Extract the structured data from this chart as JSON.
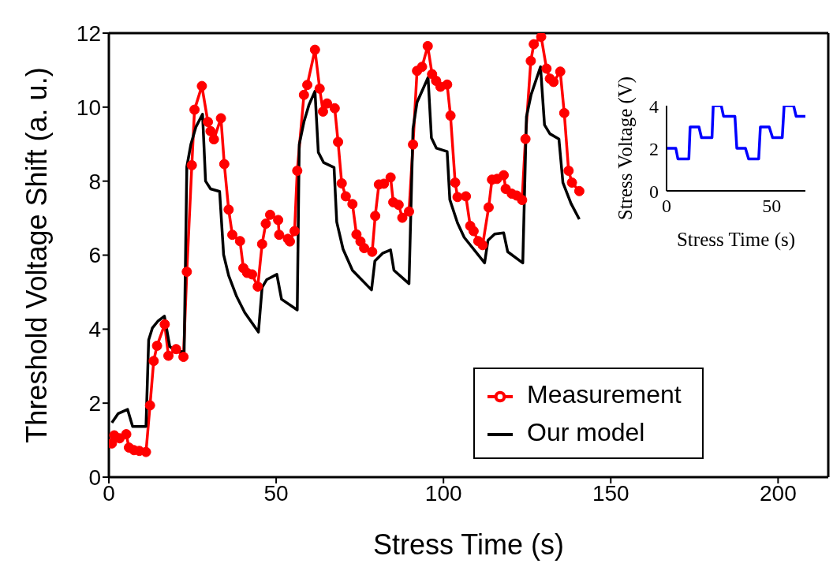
{
  "chart_data": [
    {
      "type": "line",
      "xlabel": "Stress Time (s)",
      "ylabel": "Threshold Voltage Shift (a. u.)",
      "xlim": [
        0,
        215
      ],
      "xticks": [
        0,
        50,
        100,
        150,
        200
      ],
      "ylim": [
        0,
        12
      ],
      "yticks": [
        0,
        2,
        4,
        6,
        8,
        10,
        12
      ],
      "grid": false,
      "legend": "bottom right",
      "series": [
        {
          "name": "Measurement",
          "color": "#ff0000",
          "marker": "circle",
          "x": [
            0.9,
            1.6,
            3.2,
            5.2,
            6,
            7.5,
            9.1,
            11.1,
            12.3,
            13.4,
            14.4,
            16.7,
            17.8,
            20.1,
            22.3,
            23.3,
            24.8,
            25.6,
            27.8,
            29.6,
            30.4,
            31.4,
            33.5,
            34.5,
            35.8,
            36.9,
            39.2,
            40.2,
            41.3,
            42.8,
            44.5,
            45.8,
            46.9,
            48.2,
            50.6,
            50.9,
            53.5,
            54.1,
            55.5,
            56.3,
            58.3,
            59.3,
            61.6,
            63,
            64,
            65.2,
            67.5,
            68.5,
            69.6,
            70.8,
            72.8,
            74,
            75.2,
            76.3,
            78.7,
            79.6,
            80.7,
            82.2,
            84.2,
            85,
            86.6,
            87.7,
            89.7,
            90.9,
            92.1,
            93.6,
            95.3,
            96.6,
            97.8,
            99.1,
            101.1,
            102.1,
            103.5,
            104.2,
            106.7,
            108,
            109,
            110.4,
            111.7,
            113.5,
            114.5,
            116,
            118,
            118.6,
            120.4,
            121.9,
            123.5,
            124.5,
            126.1,
            127,
            129.2,
            130.8,
            131.8,
            132.9,
            134.9,
            136.1,
            137.4,
            138.4,
            140.6
          ],
          "values": [
            0.91,
            1.13,
            1.05,
            1.16,
            0.8,
            0.73,
            0.71,
            0.68,
            1.94,
            3.14,
            3.55,
            4.13,
            3.28,
            3.46,
            3.25,
            5.55,
            8.43,
            9.93,
            10.57,
            9.6,
            9.35,
            9.13,
            9.7,
            8.46,
            7.23,
            6.55,
            6.38,
            5.65,
            5.52,
            5.48,
            5.15,
            6.3,
            6.85,
            7.09,
            6.95,
            6.55,
            6.44,
            6.37,
            6.65,
            8.28,
            10.33,
            10.6,
            11.55,
            10.5,
            9.88,
            10.1,
            9.97,
            9.06,
            7.94,
            7.59,
            7.38,
            6.56,
            6.37,
            6.19,
            6.09,
            7.06,
            7.91,
            7.93,
            8.1,
            7.43,
            7.36,
            7.01,
            7.18,
            8.99,
            10.98,
            11.09,
            11.65,
            10.89,
            10.71,
            10.55,
            10.61,
            9.77,
            7.96,
            7.57,
            7.59,
            6.79,
            6.65,
            6.38,
            6.27,
            7.29,
            8.04,
            8.06,
            8.16,
            7.79,
            7.66,
            7.61,
            7.49,
            9.14,
            11.25,
            11.7,
            11.9,
            11.04,
            10.77,
            10.68,
            10.96,
            9.84,
            8.28,
            7.96,
            7.73
          ]
        },
        {
          "name": "Our model",
          "color": "#000000",
          "marker": "none",
          "x": [
            0.9,
            2.8,
            5.6,
            7.1,
            11.1,
            11.9,
            13,
            14.6,
            16.6,
            18.2,
            19.7,
            22.5,
            23.3,
            24.5,
            26,
            28,
            28.9,
            30.4,
            33.1,
            34.3,
            35.8,
            38.2,
            40.6,
            44.7,
            45.8,
            47.2,
            50.2,
            51.6,
            56.3,
            56.9,
            58.3,
            59.8,
            61.6,
            62.6,
            64.2,
            67.3,
            68.1,
            70,
            72.8,
            78.5,
            79.5,
            81.8,
            84.2,
            85.2,
            89.7,
            90.9,
            92.1,
            95.4,
            96.4,
            97.9,
            101.1,
            101.9,
            104.2,
            106.2,
            112.3,
            113.3,
            115.3,
            118,
            119.2,
            123.7,
            124.8,
            126.2,
            129,
            130.2,
            131.8,
            134.5,
            135.7,
            138.1,
            140.6
          ],
          "values": [
            1.47,
            1.72,
            1.83,
            1.37,
            1.37,
            3.71,
            4.03,
            4.21,
            4.35,
            3.53,
            3.43,
            3.38,
            8.39,
            8.99,
            9.46,
            9.81,
            8,
            7.79,
            7.72,
            6.01,
            5.45,
            4.88,
            4.45,
            3.92,
            5.13,
            5.34,
            5.48,
            4.81,
            4.52,
            8.99,
            9.6,
            10.06,
            10.43,
            8.78,
            8.5,
            8.37,
            6.9,
            6.16,
            5.59,
            5.06,
            5.84,
            6.05,
            6.14,
            5.59,
            5.23,
            9.42,
            10.13,
            10.8,
            9.17,
            8.89,
            8.8,
            7.5,
            6.87,
            6.48,
            5.79,
            6.4,
            6.57,
            6.6,
            6.09,
            5.79,
            9.74,
            10.34,
            11.09,
            9.52,
            9.28,
            9.14,
            7.96,
            7.4,
            6.97
          ]
        }
      ]
    },
    {
      "type": "line",
      "xlabel": "Stress Time (s)",
      "ylabel": "Stress Voltage (V)",
      "xlim": [
        0,
        66
      ],
      "xticks": [
        0,
        50
      ],
      "ylim": [
        0,
        4
      ],
      "yticks": [
        0,
        2,
        4
      ],
      "grid": false,
      "series": [
        {
          "color": "#0000ff",
          "marker": "none",
          "x": [
            0,
            4.4,
            5.4,
            10.6,
            11.2,
            15.4,
            16.6,
            21.6,
            22.2,
            26,
            27.1,
            32.5,
            33.4,
            37.5,
            39,
            43.8,
            44.6,
            48.8,
            50.4,
            55,
            55.9,
            60.4,
            61.6,
            66
          ],
          "values": [
            2,
            2,
            1.5,
            1.5,
            3,
            3,
            2.5,
            2.5,
            4,
            4,
            3.5,
            3.5,
            2,
            2,
            1.5,
            1.5,
            3,
            3,
            2.5,
            2.5,
            4,
            4,
            3.5,
            3.5
          ]
        }
      ]
    }
  ]
}
